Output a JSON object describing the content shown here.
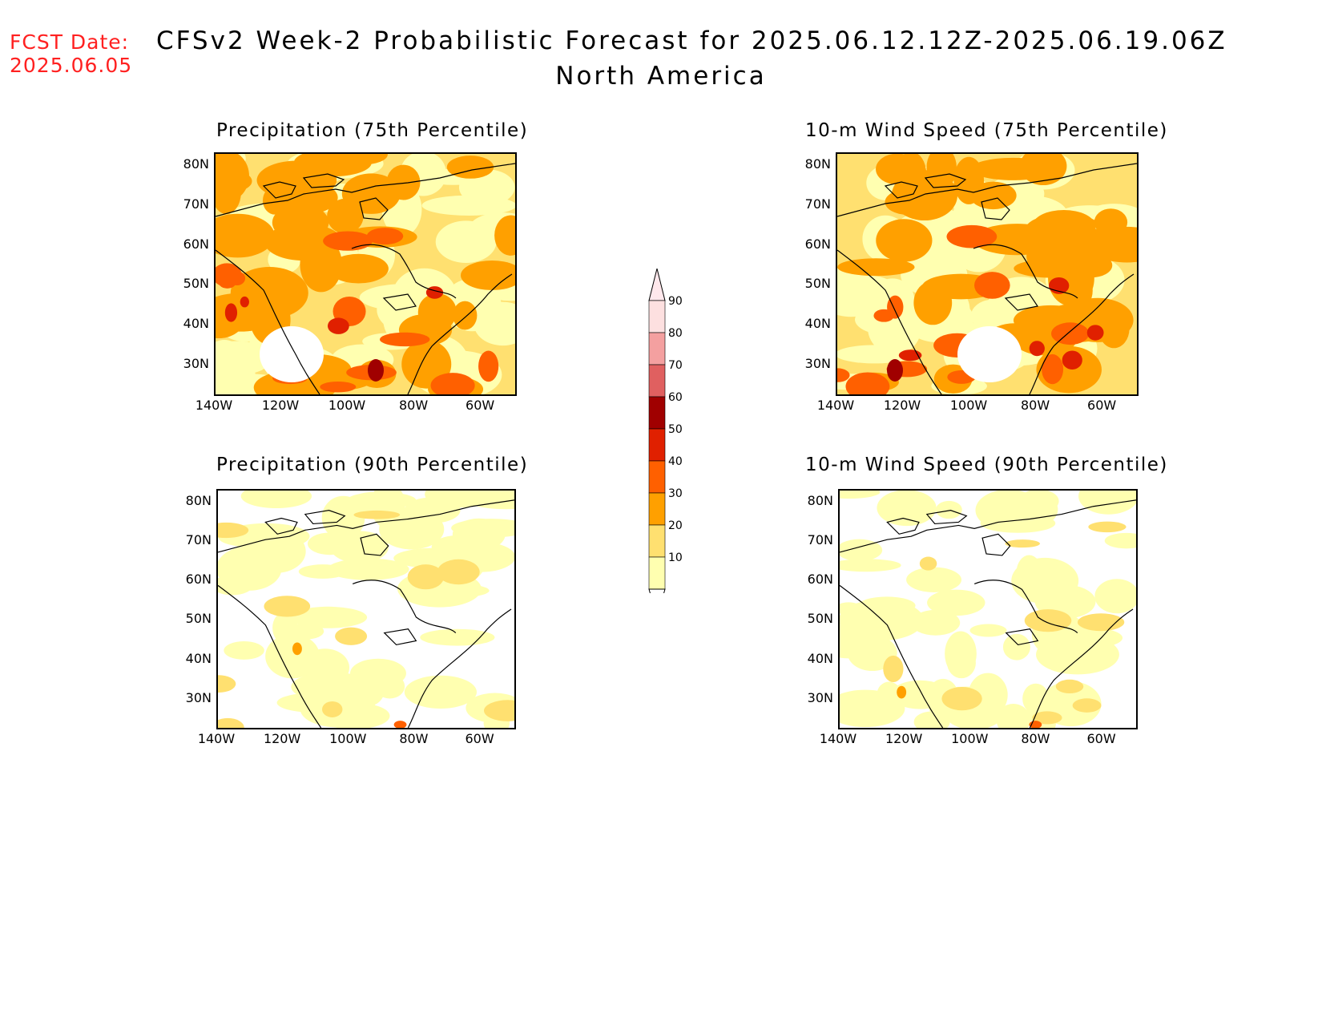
{
  "header": {
    "fcst_label": "FCST Date:",
    "fcst_date": "2025.06.05",
    "title": "CFSv2 Week-2 Probabilistic Forecast for 2025.06.12.12Z-2025.06.19.06Z",
    "subtitle": "North America"
  },
  "axes": {
    "lat_labels": [
      "80N",
      "70N",
      "60N",
      "50N",
      "40N",
      "30N"
    ],
    "lon_labels": [
      "140W",
      "120W",
      "100W",
      "80W",
      "60W"
    ]
  },
  "panels": [
    {
      "id": "precip75",
      "title": "Precipitation (75th Percentile)",
      "intensity": "high"
    },
    {
      "id": "wind75",
      "title": "10-m Wind Speed (75th Percentile)",
      "intensity": "high"
    },
    {
      "id": "precip90",
      "title": "Precipitation (90th Percentile)",
      "intensity": "low"
    },
    {
      "id": "wind90",
      "title": "10-m Wind Speed (90th Percentile)",
      "intensity": "low"
    }
  ],
  "colorbar": {
    "levels": [
      "90",
      "80",
      "70",
      "60",
      "50",
      "40",
      "30",
      "20",
      "10"
    ],
    "colors": [
      "#fde0e0",
      "#f4a0a0",
      "#e06060",
      "#a00000",
      "#e02000",
      "#ff6000",
      "#ffa000",
      "#ffe070",
      "#ffffb0"
    ]
  }
}
